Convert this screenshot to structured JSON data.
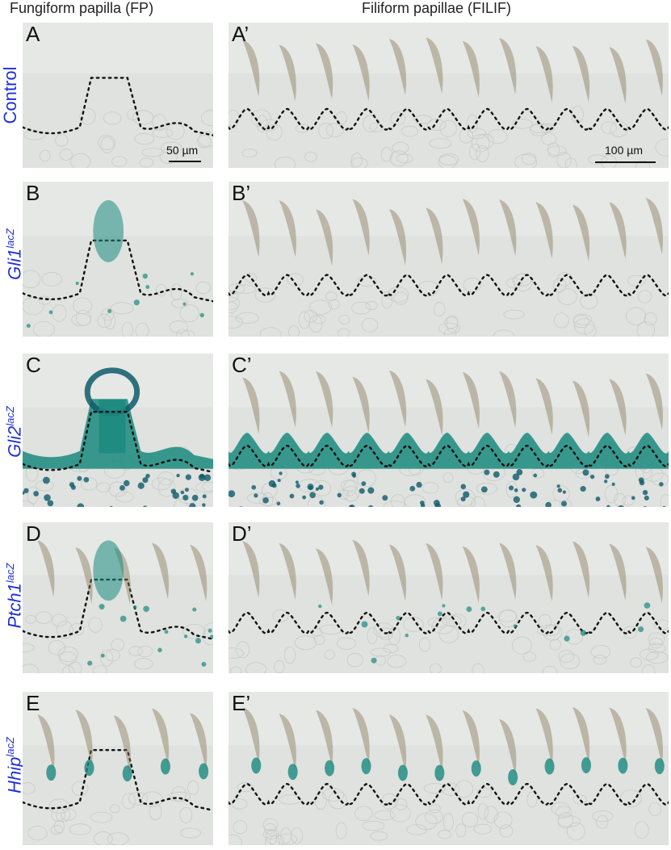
{
  "headers": {
    "fp": "Fungiform papilla (FP)",
    "filif": "Filiform papillae (FILIF)"
  },
  "rows": [
    {
      "label_base": "Control",
      "label_sup": "",
      "italic": false,
      "left_letter": "A",
      "right_letter": "A’",
      "stain": "none"
    },
    {
      "label_base": "Gli1",
      "label_sup": "lacZ",
      "italic": true,
      "left_letter": "B",
      "right_letter": "B’",
      "stain": "light"
    },
    {
      "label_base": "Gli2",
      "label_sup": "lacZ",
      "italic": true,
      "left_letter": "C",
      "right_letter": "C’",
      "stain": "heavy"
    },
    {
      "label_base": "Ptch1",
      "label_sup": "lacZ",
      "italic": true,
      "left_letter": "D",
      "right_letter": "D’",
      "stain": "spots"
    },
    {
      "label_base": "Hhip",
      "label_sup": "lacZ",
      "italic": true,
      "left_letter": "E",
      "right_letter": "E’",
      "stain": "tips"
    }
  ],
  "scale_bars": {
    "left": "50 µm",
    "right": "100 µm"
  },
  "colors": {
    "label_blue": "#1f2fd6",
    "stain_teal": "#1a8a7e",
    "stain_dark": "#0e5a6a",
    "tissue_bg": "#dcdfdc",
    "spine_brown": "#8a7a5a"
  }
}
